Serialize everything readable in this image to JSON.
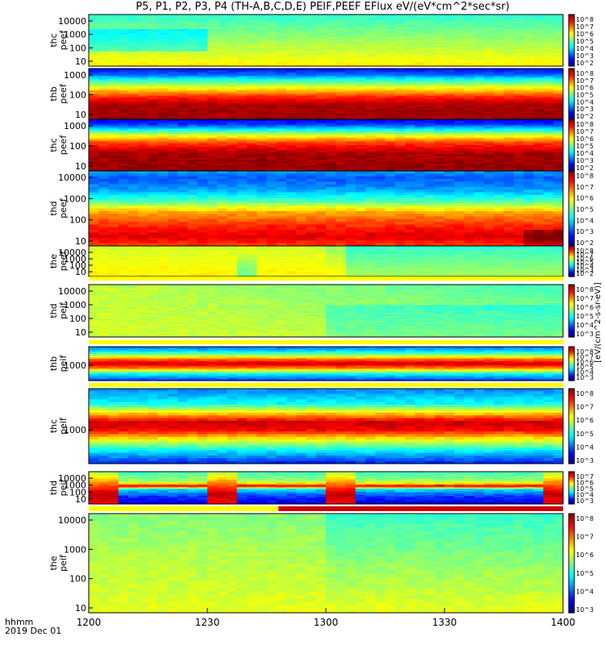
{
  "title": "P5, P1, P2, P3, P4 (TH-A,B,C,D,E) PEIF,PEEF EFlux eV/(eV*cm^2*sec*sr)",
  "footer": {
    "time_label": "hhmm",
    "date_label": "2019 Dec 01"
  },
  "colorbar_unit_label": "[eV/(cm^2-s-sr-eV)]",
  "chart_data": {
    "type": "heatmap",
    "x_axis": {
      "ticks": [
        "1200",
        "1230",
        "1300",
        "1330",
        "1400"
      ],
      "range": [
        "12:00",
        "14:00"
      ]
    },
    "panels": [
      {
        "ylabel": [
          "thc",
          "peef"
        ],
        "yticks": [
          "10000",
          "1000",
          "100",
          "10"
        ],
        "cbar_ticks": [
          "10^8",
          "10^7",
          "10^6",
          "10^5",
          "10^4",
          "10^3",
          "10^2"
        ],
        "profile": "c_peef"
      },
      {
        "ylabel": [
          "thb",
          "peef"
        ],
        "yticks": [
          "1000",
          "100",
          "10"
        ],
        "cbar_ticks": [
          "10^8",
          "10^7",
          "10^6",
          "10^5",
          "10^4",
          "10^3",
          "10^2"
        ],
        "profile": "b_peef"
      },
      {
        "ylabel": [
          "thc",
          "peef"
        ],
        "yticks": [
          "1000",
          "100",
          "10"
        ],
        "cbar_ticks": [
          "10^8",
          "10^7",
          "10^6",
          "10^5",
          "10^4",
          "10^3",
          "10^2"
        ],
        "profile": "c2_peef"
      },
      {
        "ylabel": [
          "thd",
          "peef"
        ],
        "yticks": [
          "10000",
          "1000",
          "100",
          "10"
        ],
        "cbar_ticks": [
          "10^8",
          "10^7",
          "10^6",
          "10^5",
          "10^4",
          "10^3",
          "10^2"
        ],
        "profile": "d_peef"
      },
      {
        "ylabel": [
          "the",
          "peef"
        ],
        "yticks": [
          "10000",
          "1000",
          "100",
          "10"
        ],
        "cbar_ticks": [
          "10^8",
          "10^7",
          "10^6",
          "10^5",
          "10^4",
          "10^3",
          "10^2"
        ],
        "profile": "e_peef"
      },
      {
        "ylabel": [
          "thd",
          "peif"
        ],
        "yticks": [
          "10000",
          "1000",
          "100",
          "10"
        ],
        "cbar_ticks": [
          "10^8",
          "10^7",
          "10^6",
          "10^5",
          "10^4",
          "10^3"
        ],
        "profile": "a_peif"
      },
      {
        "ylabel": [
          "thb",
          "peif"
        ],
        "yticks": [
          "1000"
        ],
        "cbar_ticks": [
          "10^8",
          "10^7",
          "10^6",
          "10^5",
          "10^4",
          "10^3"
        ],
        "profile": "b_peif"
      },
      {
        "ylabel": [
          "thc",
          "peif"
        ],
        "yticks": [
          "1000"
        ],
        "cbar_ticks": [
          "10^8",
          "10^7",
          "10^6",
          "10^5",
          "10^4",
          "10^3"
        ],
        "profile": "c_peif"
      },
      {
        "ylabel": [
          "thd",
          "peif"
        ],
        "yticks": [
          "10000",
          "1000",
          "100",
          "10"
        ],
        "cbar_ticks": [
          "10^7",
          "10^6",
          "10^5",
          "10^4",
          "10^3"
        ],
        "profile": "d_peif"
      },
      {
        "ylabel": [
          "the",
          "peif"
        ],
        "yticks": [
          "10000",
          "1000",
          "100",
          "10"
        ],
        "cbar_ticks": [
          "10^8",
          "10^7",
          "10^6",
          "10^5",
          "10^4",
          "10^3"
        ],
        "profile": "e_peif"
      }
    ]
  }
}
